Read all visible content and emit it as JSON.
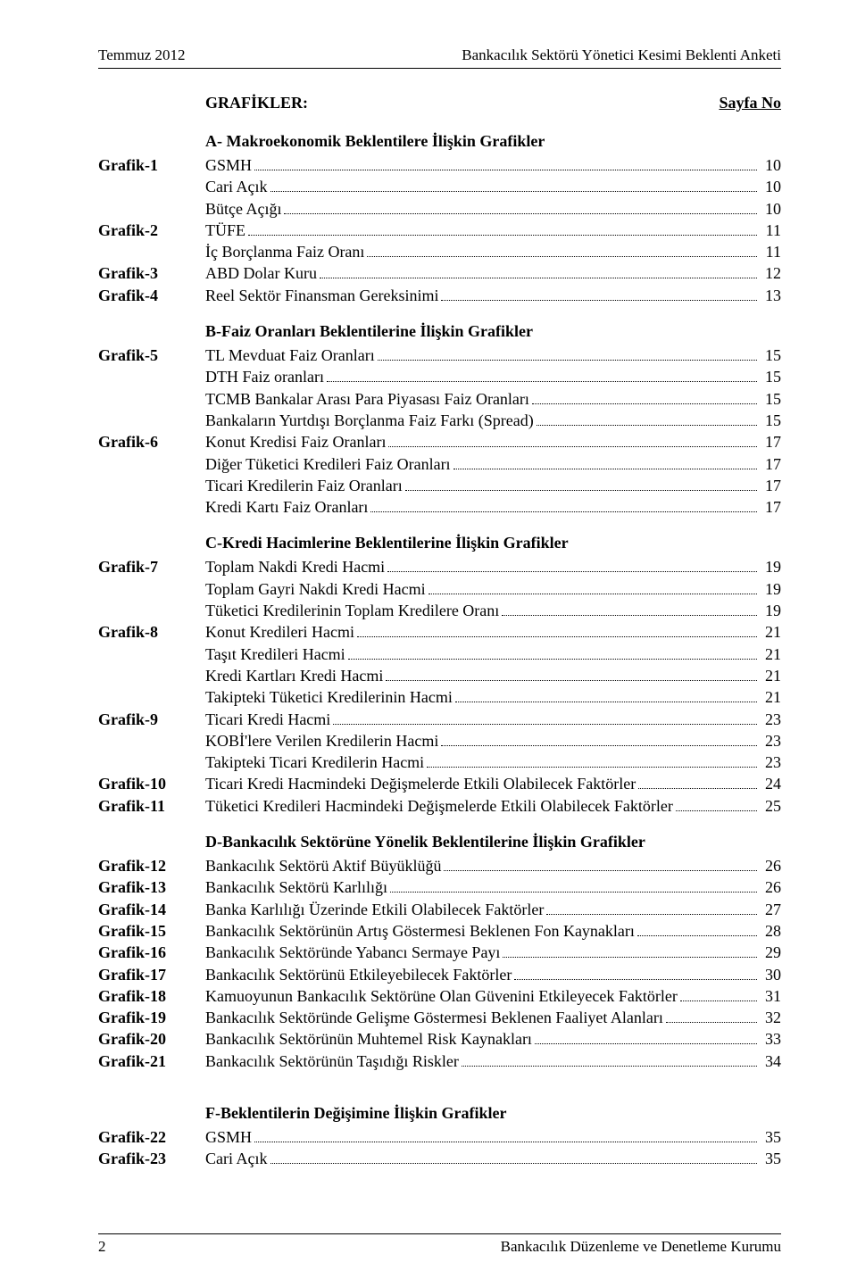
{
  "header": {
    "left": "Temmuz 2012",
    "right": "Bankacılık Sektörü Yönetici Kesimi Beklenti Anketi"
  },
  "title": {
    "label": "GRAFİKLER:",
    "page_col": "Sayfa No"
  },
  "sections": [
    {
      "heading": "A- Makroekonomik Beklentilere İlişkin Grafikler",
      "items": [
        {
          "label": "Grafik-1",
          "text": "GSMH",
          "page": "10"
        },
        {
          "label": "",
          "text": "Cari Açık",
          "page": "10"
        },
        {
          "label": "",
          "text": "Bütçe Açığı",
          "page": "10"
        },
        {
          "label": "Grafik-2",
          "text": "TÜFE",
          "page": "11"
        },
        {
          "label": "",
          "text": "İç Borçlanma Faiz Oranı",
          "page": "11"
        },
        {
          "label": "Grafik-3",
          "text": "ABD Dolar Kuru",
          "page": "12"
        },
        {
          "label": "Grafik-4",
          "text": "Reel Sektör Finansman Gereksinimi",
          "page": "13"
        }
      ]
    },
    {
      "heading": "B-Faiz Oranları Beklentilerine İlişkin Grafikler",
      "items": [
        {
          "label": "Grafik-5",
          "text": "TL Mevduat Faiz Oranları",
          "page": "15"
        },
        {
          "label": "",
          "text": "DTH Faiz oranları",
          "page": "15"
        },
        {
          "label": "",
          "text": "TCMB Bankalar Arası Para Piyasası Faiz Oranları",
          "page": "15"
        },
        {
          "label": "",
          "text": "Bankaların Yurtdışı Borçlanma Faiz Farkı (Spread)",
          "page": "15"
        },
        {
          "label": "Grafik-6",
          "text": "Konut Kredisi Faiz Oranları",
          "page": "17"
        },
        {
          "label": "",
          "text": "Diğer Tüketici Kredileri Faiz Oranları",
          "page": "17"
        },
        {
          "label": "",
          "text": "Ticari Kredilerin Faiz Oranları",
          "page": "17"
        },
        {
          "label": "",
          "text": "Kredi Kartı Faiz Oranları",
          "page": "17"
        }
      ]
    },
    {
      "heading": "C-Kredi Hacimlerine Beklentilerine İlişkin Grafikler",
      "items": [
        {
          "label": "Grafik-7",
          "text": "Toplam Nakdi Kredi Hacmi",
          "page": "19"
        },
        {
          "label": "",
          "text": "Toplam Gayri Nakdi Kredi Hacmi",
          "page": "19"
        },
        {
          "label": "",
          "text": "Tüketici Kredilerinin Toplam Kredilere Oranı",
          "page": "19"
        },
        {
          "label": "Grafik-8",
          "text": "Konut Kredileri Hacmi",
          "page": "21"
        },
        {
          "label": "",
          "text": "Taşıt Kredileri Hacmi",
          "page": "21"
        },
        {
          "label": "",
          "text": "Kredi Kartları Kredi Hacmi",
          "page": "21"
        },
        {
          "label": "",
          "text": "Takipteki Tüketici Kredilerinin Hacmi",
          "page": "21"
        },
        {
          "label": "Grafik-9",
          "text": "Ticari Kredi Hacmi",
          "page": "23"
        },
        {
          "label": "",
          "text": "KOBİ'lere Verilen Kredilerin Hacmi",
          "page": "23"
        },
        {
          "label": "",
          "text": "Takipteki Ticari Kredilerin Hacmi",
          "page": "23"
        },
        {
          "label": "Grafik-10",
          "text": "Ticari Kredi Hacmindeki Değişmelerde Etkili Olabilecek Faktörler",
          "page": "24"
        },
        {
          "label": "Grafik-11",
          "text": "Tüketici Kredileri Hacmindeki Değişmelerde Etkili Olabilecek Faktörler",
          "page": "25"
        }
      ]
    },
    {
      "heading": "D-Bankacılık Sektörüne Yönelik Beklentilerine İlişkin Grafikler",
      "items": [
        {
          "label": "Grafik-12",
          "text": "Bankacılık Sektörü Aktif Büyüklüğü",
          "page": "26"
        },
        {
          "label": "Grafik-13",
          "text": "Bankacılık Sektörü Karlılığı",
          "page": "26"
        },
        {
          "label": "Grafik-14",
          "text": "Banka Karlılığı Üzerinde Etkili Olabilecek Faktörler",
          "page": "27"
        },
        {
          "label": "Grafik-15",
          "text": "Bankacılık Sektörünün Artış Göstermesi Beklenen Fon Kaynakları",
          "page": "28"
        },
        {
          "label": "Grafik-16",
          "text": "Bankacılık Sektöründe Yabancı Sermaye Payı",
          "page": "29"
        },
        {
          "label": "Grafik-17",
          "text": "Bankacılık Sektörünü Etkileyebilecek Faktörler",
          "page": "30"
        },
        {
          "label": "Grafik-18",
          "text": "Kamuoyunun Bankacılık Sektörüne Olan Güvenini Etkileyecek Faktörler",
          "page": "31"
        },
        {
          "label": "Grafik-19",
          "text": "Bankacılık Sektöründe Gelişme Göstermesi Beklenen Faaliyet Alanları",
          "page": "32"
        },
        {
          "label": "Grafik-20",
          "text": "Bankacılık Sektörünün Muhtemel Risk Kaynakları",
          "page": "33"
        },
        {
          "label": "Grafik-21",
          "text": "Bankacılık Sektörünün Taşıdığı Riskler",
          "page": "34"
        }
      ]
    },
    {
      "heading": "F-Beklentilerin  Değişimine İlişkin Grafikler",
      "items": [
        {
          "label": "Grafik-22",
          "text": "GSMH",
          "page": "35"
        },
        {
          "label": "Grafik-23",
          "text": "Cari Açık",
          "page": "35"
        }
      ]
    }
  ],
  "footer": {
    "page_number": "2",
    "right": "Bankacılık Düzenleme ve Denetleme Kurumu"
  }
}
